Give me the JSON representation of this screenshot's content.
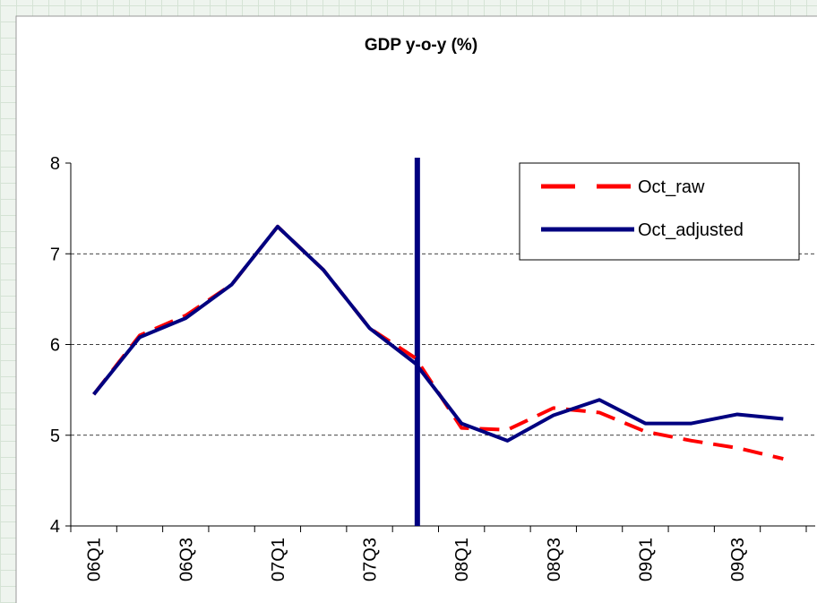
{
  "chart_data": {
    "type": "line",
    "title": "GDP y-o-y (%)",
    "categories": [
      "06Q1",
      null,
      "06Q3",
      null,
      "07Q1",
      null,
      "07Q3",
      null,
      "08Q1",
      null,
      "08Q3",
      null,
      "09Q1",
      null,
      "09Q3",
      null
    ],
    "series": [
      {
        "name": "Oct_raw",
        "color": "#ff0000",
        "dash": true,
        "values": [
          5.45,
          6.1,
          6.32,
          6.66,
          7.3,
          6.82,
          6.18,
          5.85,
          5.08,
          5.06,
          5.3,
          5.25,
          5.04,
          4.94,
          4.86,
          4.74
        ]
      },
      {
        "name": "Oct_adjusted",
        "color": "#000080",
        "dash": false,
        "values": [
          5.45,
          6.08,
          6.29,
          6.66,
          7.3,
          6.82,
          6.18,
          5.79,
          5.13,
          4.94,
          5.22,
          5.39,
          5.13,
          5.13,
          5.23,
          5.18
        ]
      }
    ],
    "ylim": [
      4,
      8
    ],
    "yticks": [
      4,
      5,
      6,
      7,
      8
    ],
    "grid": true,
    "legend": "top-right"
  }
}
